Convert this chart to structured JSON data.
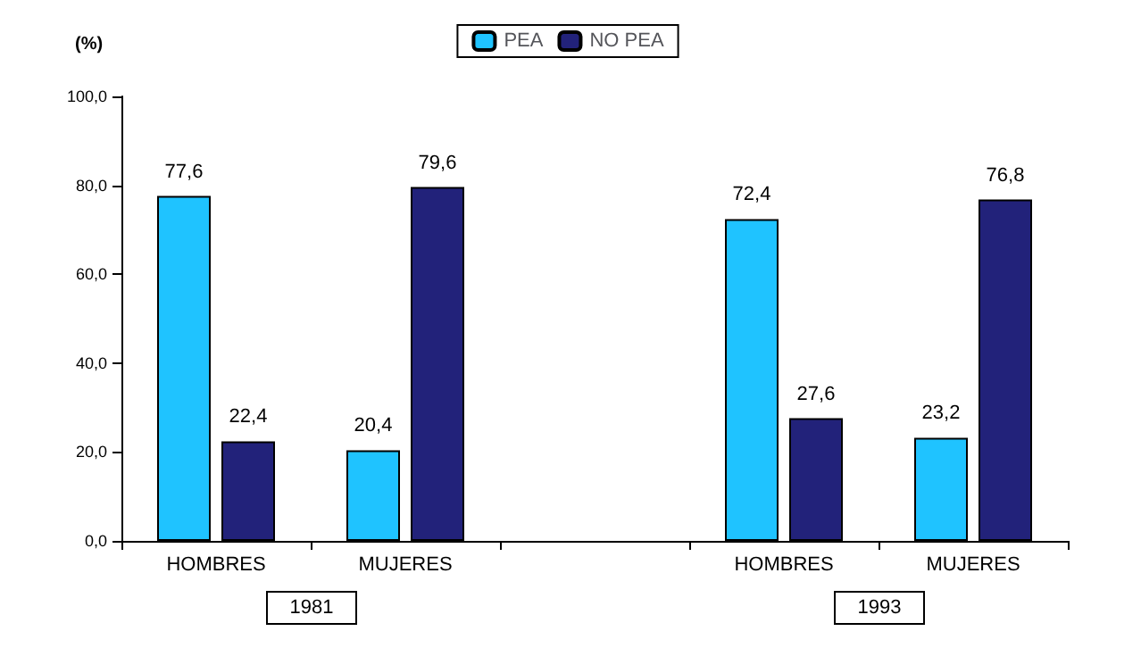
{
  "chart_data": {
    "type": "bar",
    "ylabel": "(%)",
    "categories": [
      "HOMBRES",
      "MUJERES",
      null,
      "HOMBRES",
      "MUJERES"
    ],
    "series": [
      {
        "name": "PEA",
        "color": "#1fc3ff",
        "values": [
          77.6,
          20.4,
          null,
          72.4,
          23.2
        ],
        "value_labels": [
          "77,6",
          "20,4",
          null,
          "72,4",
          "23,2"
        ]
      },
      {
        "name": "NO PEA",
        "color": "#22227a",
        "values": [
          22.4,
          79.6,
          null,
          27.6,
          76.8
        ],
        "value_labels": [
          "22,4",
          "79,6",
          null,
          "27,6",
          "76,8"
        ]
      }
    ],
    "ylim": [
      0,
      100
    ],
    "yticks": [
      {
        "value": 0,
        "label": "0,0"
      },
      {
        "value": 20,
        "label": "20,0"
      },
      {
        "value": 40,
        "label": "40,0"
      },
      {
        "value": 60,
        "label": "60,0"
      },
      {
        "value": 80,
        "label": "80,0"
      },
      {
        "value": 100,
        "label": "100,0"
      }
    ],
    "annotations": [
      "1981",
      "1993"
    ],
    "legend": "top",
    "grid": false
  }
}
